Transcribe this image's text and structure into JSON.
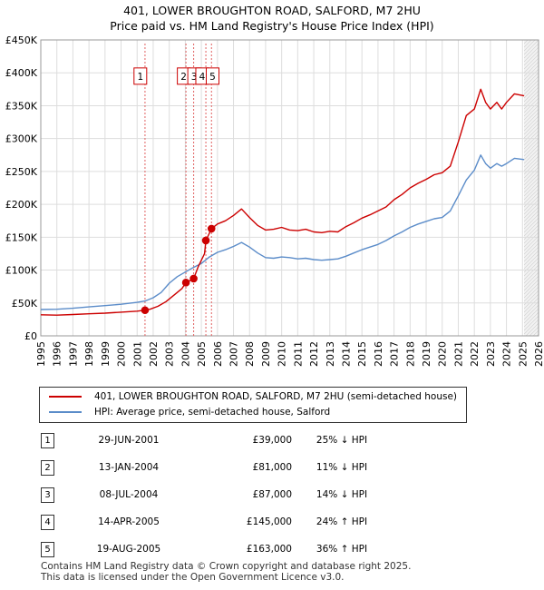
{
  "chart_data": {
    "type": "line",
    "title": "401, LOWER BROUGHTON ROAD, SALFORD, M7 2HU",
    "subtitle": "Price paid vs. HM Land Registry's House Price Index (HPI)",
    "xlim": [
      1995,
      2026
    ],
    "ylim": [
      0,
      450000
    ],
    "x_ticks": [
      1995,
      1996,
      1997,
      1998,
      1999,
      2000,
      2001,
      2002,
      2003,
      2004,
      2005,
      2006,
      2007,
      2008,
      2009,
      2010,
      2011,
      2012,
      2013,
      2014,
      2015,
      2016,
      2017,
      2018,
      2019,
      2020,
      2021,
      2022,
      2023,
      2024,
      2025,
      2026
    ],
    "y_ticks": [
      0,
      50000,
      100000,
      150000,
      200000,
      250000,
      300000,
      350000,
      400000,
      450000
    ],
    "y_tick_labels": [
      "£0",
      "£50K",
      "£100K",
      "£150K",
      "£200K",
      "£250K",
      "£300K",
      "£350K",
      "£400K",
      "£450K"
    ],
    "grid": true,
    "data_end_x": 2025.1,
    "series": [
      {
        "name": "401, LOWER BROUGHTON ROAD, SALFORD, M7 2HU (semi-detached house)",
        "color": "#cc0000",
        "points": [
          [
            1995.0,
            32000
          ],
          [
            1996.0,
            31500
          ],
          [
            1997.0,
            32500
          ],
          [
            1998.0,
            33500
          ],
          [
            1999.0,
            34500
          ],
          [
            2000.0,
            36000
          ],
          [
            2001.0,
            37500
          ],
          [
            2001.49,
            39000
          ],
          [
            2001.8,
            40500
          ],
          [
            2002.3,
            45000
          ],
          [
            2002.8,
            52000
          ],
          [
            2003.3,
            62000
          ],
          [
            2003.8,
            72000
          ],
          [
            2004.04,
            81000
          ],
          [
            2004.3,
            84000
          ],
          [
            2004.52,
            87000
          ],
          [
            2004.8,
            105000
          ],
          [
            2005.2,
            125000
          ],
          [
            2005.28,
            145000
          ],
          [
            2005.63,
            163000
          ],
          [
            2006.0,
            170000
          ],
          [
            2006.5,
            175000
          ],
          [
            2007.0,
            183000
          ],
          [
            2007.5,
            193000
          ],
          [
            2008.0,
            180000
          ],
          [
            2008.5,
            168000
          ],
          [
            2009.0,
            161000
          ],
          [
            2009.5,
            162000
          ],
          [
            2010.0,
            165000
          ],
          [
            2010.5,
            161000
          ],
          [
            2011.0,
            160000
          ],
          [
            2011.5,
            162000
          ],
          [
            2012.0,
            158000
          ],
          [
            2012.5,
            157000
          ],
          [
            2013.0,
            159000
          ],
          [
            2013.5,
            158000
          ],
          [
            2014.0,
            166000
          ],
          [
            2014.5,
            172000
          ],
          [
            2015.0,
            179000
          ],
          [
            2015.5,
            184000
          ],
          [
            2016.0,
            190000
          ],
          [
            2016.5,
            196000
          ],
          [
            2017.0,
            207000
          ],
          [
            2017.5,
            215000
          ],
          [
            2018.0,
            225000
          ],
          [
            2018.5,
            232000
          ],
          [
            2019.0,
            238000
          ],
          [
            2019.5,
            245000
          ],
          [
            2020.0,
            248000
          ],
          [
            2020.5,
            258000
          ],
          [
            2021.0,
            295000
          ],
          [
            2021.5,
            335000
          ],
          [
            2022.0,
            345000
          ],
          [
            2022.4,
            375000
          ],
          [
            2022.7,
            355000
          ],
          [
            2023.0,
            345000
          ],
          [
            2023.4,
            355000
          ],
          [
            2023.7,
            345000
          ],
          [
            2024.0,
            355000
          ],
          [
            2024.5,
            368000
          ],
          [
            2025.1,
            365000
          ]
        ]
      },
      {
        "name": "HPI: Average price, semi-detached house, Salford",
        "color": "#5b8cc9",
        "points": [
          [
            1995.0,
            40000
          ],
          [
            1996.0,
            40500
          ],
          [
            1997.0,
            42000
          ],
          [
            1998.0,
            44000
          ],
          [
            1999.0,
            46000
          ],
          [
            2000.0,
            48000
          ],
          [
            2001.0,
            51000
          ],
          [
            2001.5,
            53000
          ],
          [
            2002.0,
            58000
          ],
          [
            2002.5,
            66000
          ],
          [
            2003.0,
            80000
          ],
          [
            2003.5,
            90000
          ],
          [
            2004.0,
            97000
          ],
          [
            2004.5,
            104000
          ],
          [
            2005.0,
            110000
          ],
          [
            2005.5,
            120000
          ],
          [
            2006.0,
            127000
          ],
          [
            2006.5,
            131000
          ],
          [
            2007.0,
            136000
          ],
          [
            2007.5,
            142000
          ],
          [
            2008.0,
            135000
          ],
          [
            2008.5,
            126000
          ],
          [
            2009.0,
            119000
          ],
          [
            2009.5,
            118000
          ],
          [
            2010.0,
            120000
          ],
          [
            2010.5,
            119000
          ],
          [
            2011.0,
            117000
          ],
          [
            2011.5,
            118000
          ],
          [
            2012.0,
            116000
          ],
          [
            2012.5,
            115000
          ],
          [
            2013.0,
            116000
          ],
          [
            2013.5,
            117000
          ],
          [
            2014.0,
            121000
          ],
          [
            2014.5,
            126000
          ],
          [
            2015.0,
            131000
          ],
          [
            2015.5,
            135000
          ],
          [
            2016.0,
            139000
          ],
          [
            2016.5,
            145000
          ],
          [
            2017.0,
            152000
          ],
          [
            2017.5,
            158000
          ],
          [
            2018.0,
            165000
          ],
          [
            2018.5,
            170000
          ],
          [
            2019.0,
            174000
          ],
          [
            2019.5,
            178000
          ],
          [
            2020.0,
            180000
          ],
          [
            2020.5,
            190000
          ],
          [
            2021.0,
            213000
          ],
          [
            2021.5,
            237000
          ],
          [
            2022.0,
            252000
          ],
          [
            2022.4,
            275000
          ],
          [
            2022.7,
            262000
          ],
          [
            2023.0,
            255000
          ],
          [
            2023.4,
            262000
          ],
          [
            2023.7,
            258000
          ],
          [
            2024.0,
            262000
          ],
          [
            2024.5,
            270000
          ],
          [
            2025.1,
            268000
          ]
        ]
      }
    ],
    "sale_markers": [
      {
        "label": "1",
        "x": 2001.49,
        "y": 39000
      },
      {
        "label": "2",
        "x": 2004.04,
        "y": 81000
      },
      {
        "label": "3",
        "x": 2004.52,
        "y": 87000
      },
      {
        "label": "4",
        "x": 2005.28,
        "y": 145000
      },
      {
        "label": "5",
        "x": 2005.63,
        "y": 163000
      }
    ],
    "marker_boxes": [
      {
        "label": "1",
        "x": 2001.2
      },
      {
        "label": "2",
        "x": 2003.9
      },
      {
        "label": "3",
        "x": 2004.55
      },
      {
        "label": "4",
        "x": 2005.05
      },
      {
        "label": "5",
        "x": 2005.7
      }
    ]
  },
  "legend": {
    "property_label": "401, LOWER BROUGHTON ROAD, SALFORD, M7 2HU (semi-detached house)",
    "hpi_label": "HPI: Average price, semi-detached house, Salford"
  },
  "sales": [
    {
      "num": "1",
      "date": "29-JUN-2001",
      "price": "£39,000",
      "hpi": "25% ↓ HPI"
    },
    {
      "num": "2",
      "date": "13-JAN-2004",
      "price": "£81,000",
      "hpi": "11% ↓ HPI"
    },
    {
      "num": "3",
      "date": "08-JUL-2004",
      "price": "£87,000",
      "hpi": "14% ↓ HPI"
    },
    {
      "num": "4",
      "date": "14-APR-2005",
      "price": "£145,000",
      "hpi": "24% ↑ HPI"
    },
    {
      "num": "5",
      "date": "19-AUG-2005",
      "price": "£163,000",
      "hpi": "36% ↑ HPI"
    }
  ],
  "footer": {
    "line1": "Contains HM Land Registry data © Crown copyright and database right 2025.",
    "line2": "This data is licensed under the Open Government Licence v3.0."
  }
}
